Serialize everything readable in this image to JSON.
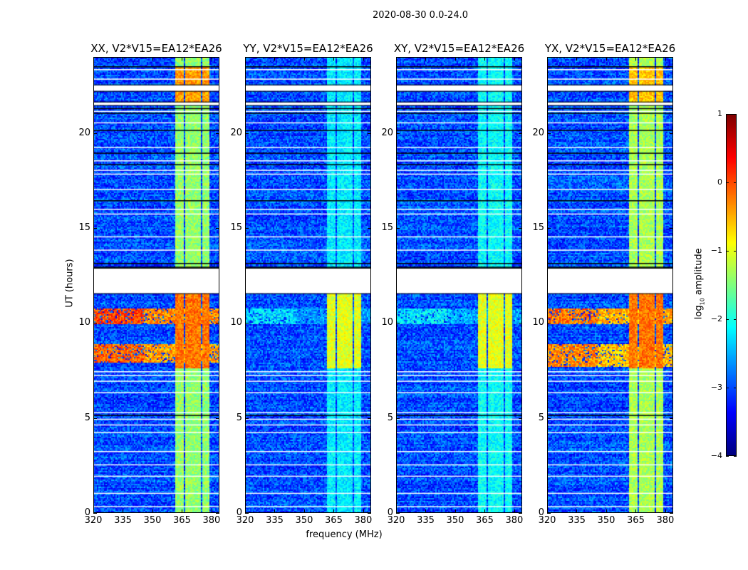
{
  "chart_data": {
    "type": "heatmap",
    "title": "2020-08-30 0.0-24.0",
    "xlabel": "frequency (MHz)",
    "ylabel": "UT (hours)",
    "xlim": [
      320,
      384
    ],
    "ylim": [
      0,
      24
    ],
    "xticks": [
      320,
      335,
      350,
      365,
      380
    ],
    "yticks": [
      0,
      5,
      10,
      15,
      20
    ],
    "colormap": "jet",
    "colorbar": {
      "label": "log10 amplitude",
      "label_main": "log",
      "label_sub": "10",
      "label_rest": " amplitude",
      "range": [
        -4,
        1
      ],
      "ticks": [
        "1",
        "0",
        "−1",
        "−2",
        "−3",
        "−4"
      ],
      "tick_values": [
        1,
        0,
        -1,
        -2,
        -3,
        -4
      ]
    },
    "background_level": -3.0,
    "rfi_channels_mhz": [
      [
        361.5,
        366
      ],
      [
        366.8,
        370.5
      ],
      [
        371.2,
        374.5
      ],
      [
        375.2,
        378.8
      ]
    ],
    "flagged_hours": [
      [
        11.6,
        12.9
      ],
      [
        22.25,
        22.55
      ],
      [
        21.5,
        21.65
      ]
    ],
    "flag_lines_hours": [
      0.4,
      1.1,
      2.0,
      2.6,
      3.3,
      4.3,
      4.7,
      5.0,
      5.35,
      6.4,
      7.0,
      7.3,
      7.5,
      13.9,
      14.6,
      15.8,
      16.05,
      17.1,
      17.9,
      18.1,
      18.6,
      19.3,
      20.6,
      21.2,
      22.9,
      23.4
    ],
    "dark_lines_hours": [
      5.2,
      13.0,
      13.2,
      16.5,
      18.4,
      19.0,
      20.2,
      21.1,
      21.35,
      23.55
    ],
    "panels": [
      {
        "title": "XX, V2*V15=EA12*EA26",
        "rfi_level": -1.4,
        "events": [
          {
            "hours": [
              7.6,
              11.6
            ],
            "rfi_level": -0.2
          },
          {
            "hours": [
              7.9,
              8.9
            ],
            "broadband_level": -0.1
          },
          {
            "hours": [
              10.0,
              10.8
            ],
            "broadband_level": 0.0
          },
          {
            "hours": [
              21.6,
              23.6
            ],
            "rfi_level": -0.4
          }
        ]
      },
      {
        "title": "YY, V2*V15=EA12*EA26",
        "rfi_level": -2.2,
        "events": [
          {
            "hours": [
              7.6,
              11.6
            ],
            "rfi_level": -1.0
          },
          {
            "hours": [
              10.0,
              10.8
            ],
            "broadband_level": -2.3
          }
        ]
      },
      {
        "title": "XY, V2*V15=EA12*EA26",
        "rfi_level": -2.1,
        "events": [
          {
            "hours": [
              7.6,
              11.6
            ],
            "rfi_level": -1.0
          },
          {
            "hours": [
              10.0,
              10.8
            ],
            "broadband_level": -2.2
          }
        ]
      },
      {
        "title": "YX, V2*V15=EA12*EA26",
        "rfi_level": -1.3,
        "events": [
          {
            "hours": [
              7.6,
              11.6
            ],
            "rfi_level": -0.2
          },
          {
            "hours": [
              7.7,
              8.9
            ],
            "broadband_level": -0.3
          },
          {
            "hours": [
              10.0,
              10.8
            ],
            "broadband_level": -0.2
          },
          {
            "hours": [
              21.6,
              23.6
            ],
            "rfi_level": -0.6
          }
        ]
      }
    ]
  }
}
